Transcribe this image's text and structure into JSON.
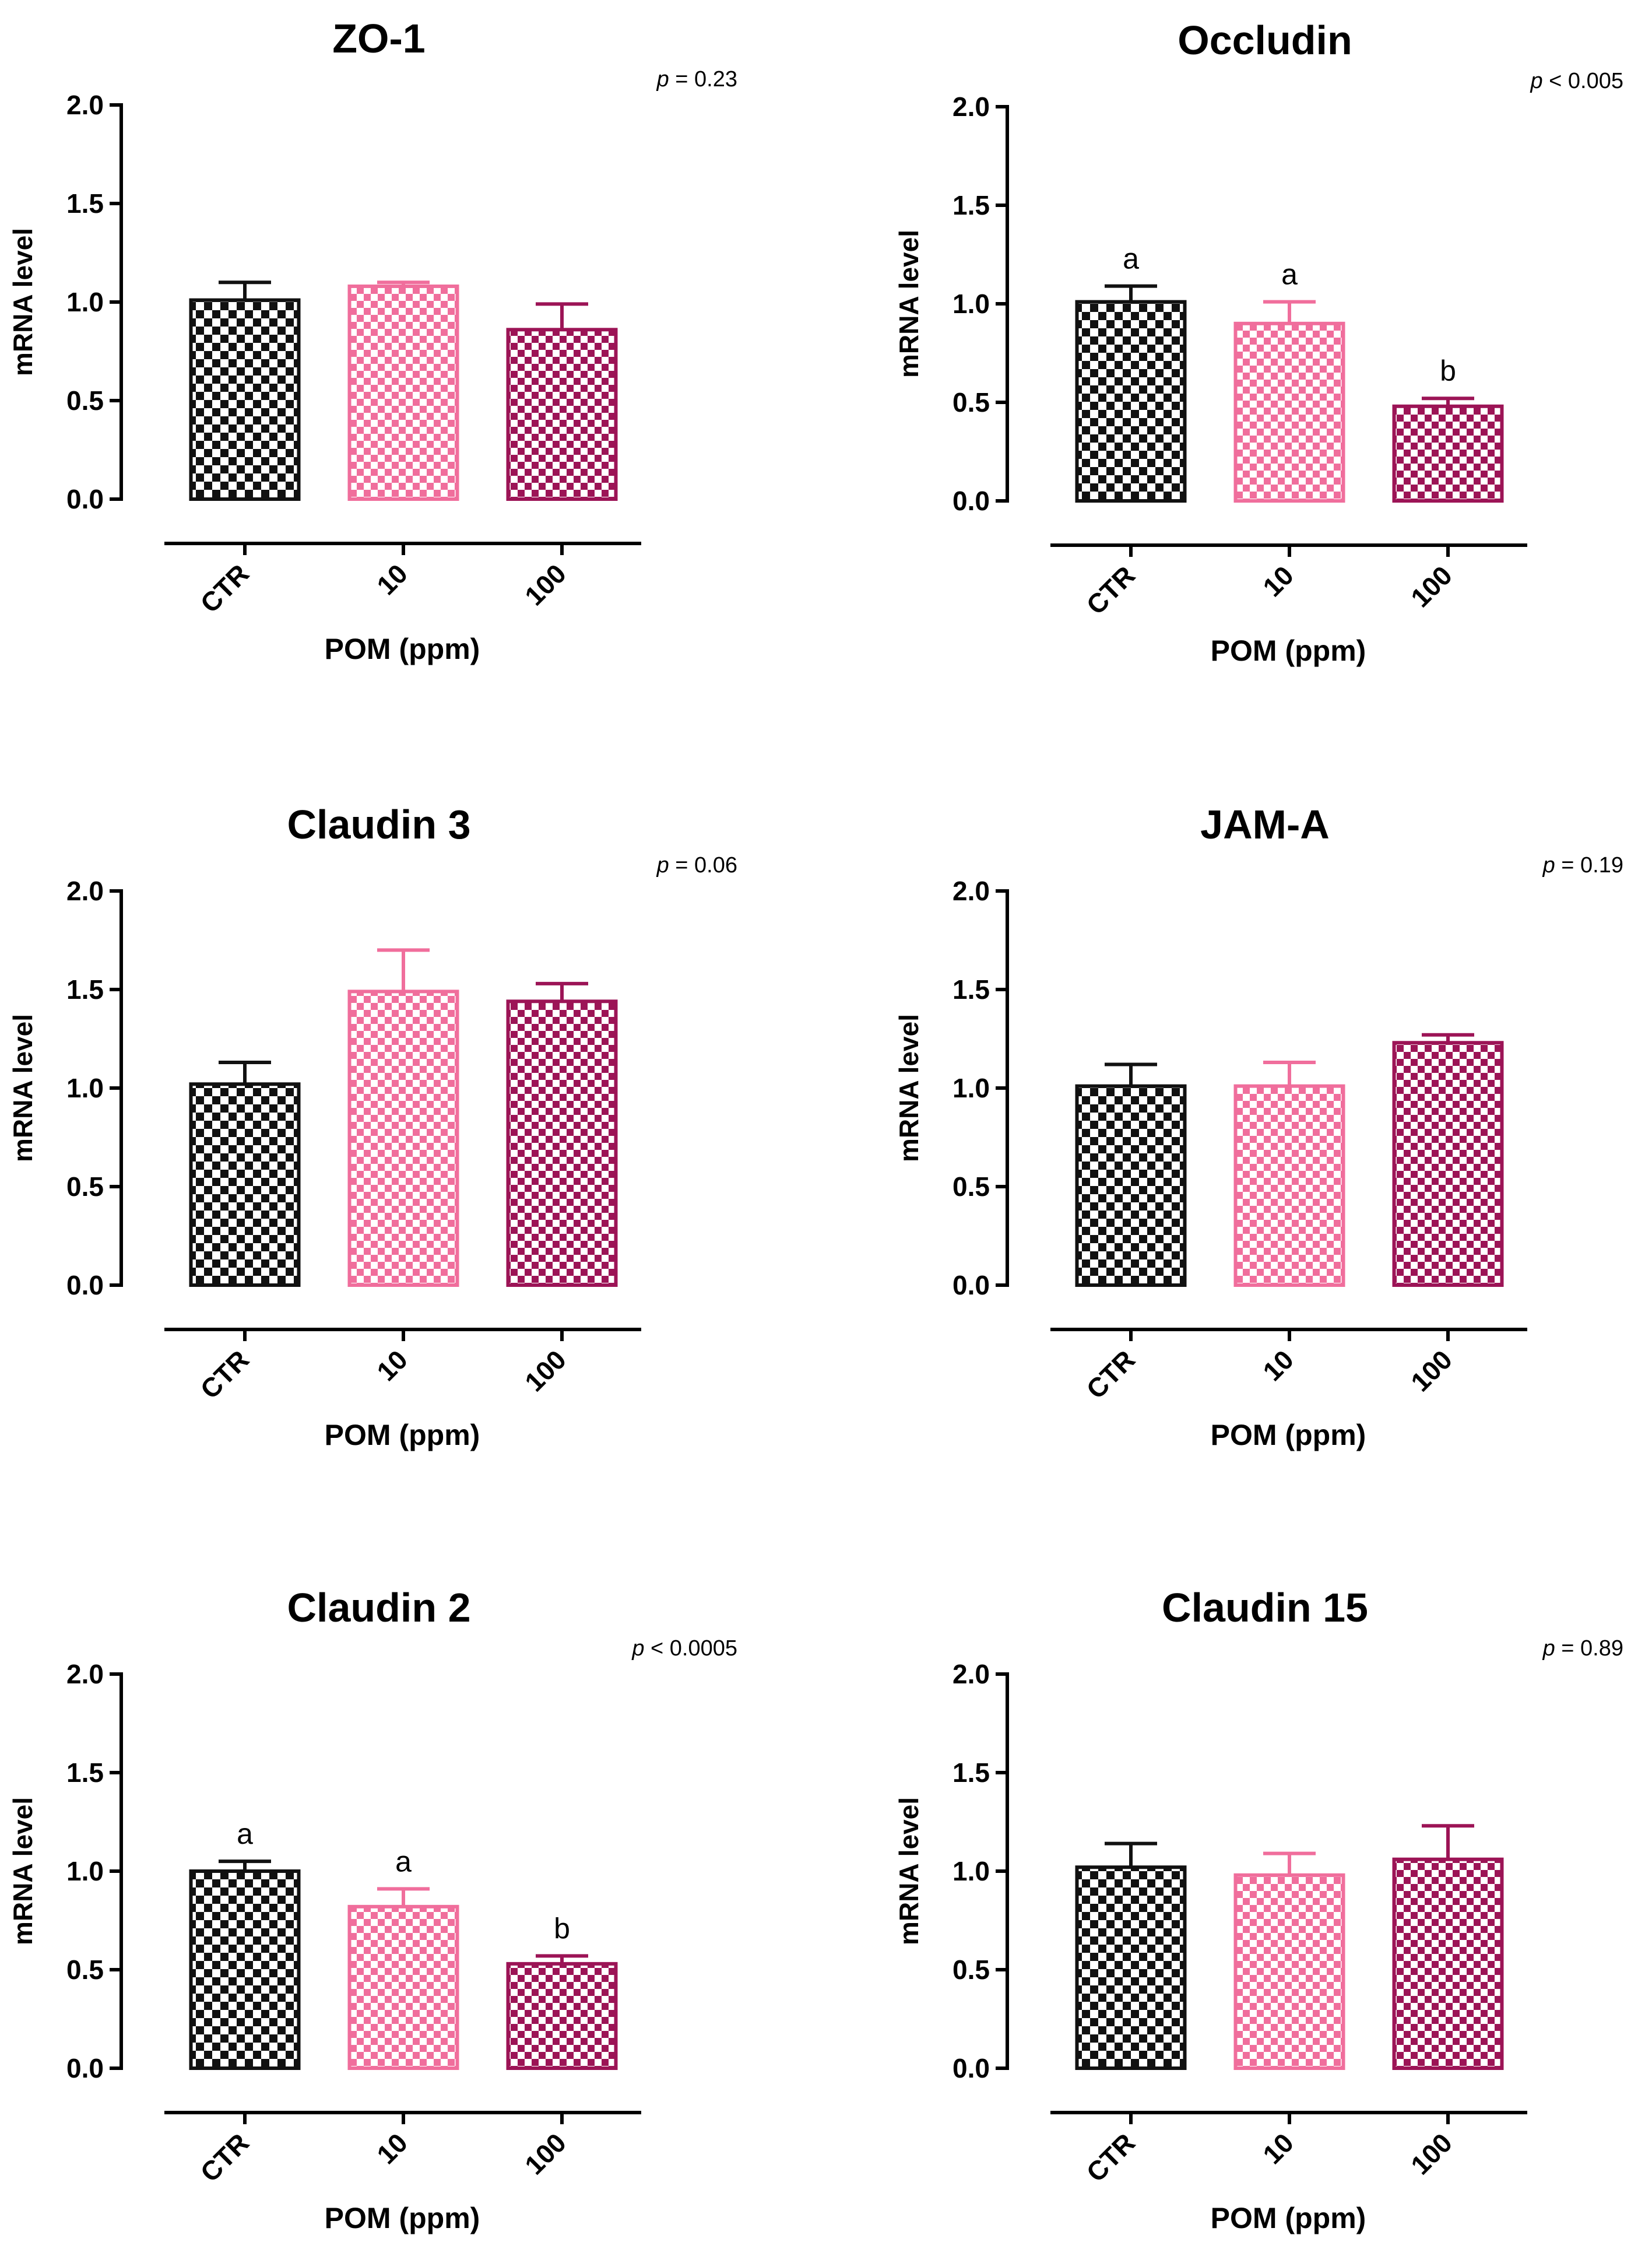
{
  "figure": {
    "palette": {
      "CTR": "#111111",
      "10": "#f06e9c",
      "100": "#9c1456"
    },
    "panel_order": [
      "ZO-1",
      "Occludin",
      "Claudin 3",
      "JAM-A",
      "Claudin 2",
      "Claudin 15"
    ]
  },
  "chart_data": [
    {
      "type": "bar",
      "title": "ZO-1",
      "categories": [
        "CTR",
        "10",
        "100"
      ],
      "values": [
        1.01,
        1.08,
        0.86
      ],
      "errors": [
        0.09,
        0.02,
        0.13
      ],
      "letters": [
        "",
        "",
        ""
      ],
      "p_label": "p",
      "p_text": " = 0.23",
      "xlabel": "POM (ppm)",
      "ylabel": "mRNA level",
      "ylim": [
        0,
        2.0
      ],
      "yticks": [
        "0.0",
        "0.5",
        "1.0",
        "1.5",
        "2.0"
      ]
    },
    {
      "type": "bar",
      "title": "Occludin",
      "categories": [
        "CTR",
        "10",
        "100"
      ],
      "values": [
        1.01,
        0.9,
        0.48
      ],
      "errors": [
        0.08,
        0.11,
        0.04
      ],
      "letters": [
        "a",
        "a",
        "b"
      ],
      "p_label": "p",
      "p_text": " < 0.005",
      "xlabel": "POM (ppm)",
      "ylabel": "mRNA level",
      "ylim": [
        0,
        2.0
      ],
      "yticks": [
        "0.0",
        "0.5",
        "1.0",
        "1.5",
        "2.0"
      ]
    },
    {
      "type": "bar",
      "title": "Claudin 3",
      "categories": [
        "CTR",
        "10",
        "100"
      ],
      "values": [
        1.02,
        1.49,
        1.44
      ],
      "errors": [
        0.11,
        0.21,
        0.09
      ],
      "letters": [
        "",
        "",
        ""
      ],
      "p_label": "p",
      "p_text": " = 0.06",
      "xlabel": "POM (ppm)",
      "ylabel": "mRNA level",
      "ylim": [
        0,
        2.0
      ],
      "yticks": [
        "0.0",
        "0.5",
        "1.0",
        "1.5",
        "2.0"
      ]
    },
    {
      "type": "bar",
      "title": "JAM-A",
      "categories": [
        "CTR",
        "10",
        "100"
      ],
      "values": [
        1.01,
        1.01,
        1.23
      ],
      "errors": [
        0.11,
        0.12,
        0.04
      ],
      "letters": [
        "",
        "",
        ""
      ],
      "p_label": "p",
      "p_text": " = 0.19",
      "xlabel": "POM (ppm)",
      "ylabel": "mRNA level",
      "ylim": [
        0,
        2.0
      ],
      "yticks": [
        "0.0",
        "0.5",
        "1.0",
        "1.5",
        "2.0"
      ]
    },
    {
      "type": "bar",
      "title": "Claudin 2",
      "categories": [
        "CTR",
        "10",
        "100"
      ],
      "values": [
        1.0,
        0.82,
        0.53
      ],
      "errors": [
        0.05,
        0.09,
        0.04
      ],
      "letters": [
        "a",
        "a",
        "b"
      ],
      "p_label": "p",
      "p_text": " < 0.0005",
      "xlabel": "POM (ppm)",
      "ylabel": "mRNA level",
      "ylim": [
        0,
        2.0
      ],
      "yticks": [
        "0.0",
        "0.5",
        "1.0",
        "1.5",
        "2.0"
      ]
    },
    {
      "type": "bar",
      "title": "Claudin 15",
      "categories": [
        "CTR",
        "10",
        "100"
      ],
      "values": [
        1.02,
        0.98,
        1.06
      ],
      "errors": [
        0.12,
        0.11,
        0.17
      ],
      "letters": [
        "",
        "",
        ""
      ],
      "p_label": "p",
      "p_text": " = 0.89",
      "xlabel": "POM (ppm)",
      "ylabel": "mRNA level",
      "ylim": [
        0,
        2.0
      ],
      "yticks": [
        "0.0",
        "0.5",
        "1.0",
        "1.5",
        "2.0"
      ]
    }
  ]
}
